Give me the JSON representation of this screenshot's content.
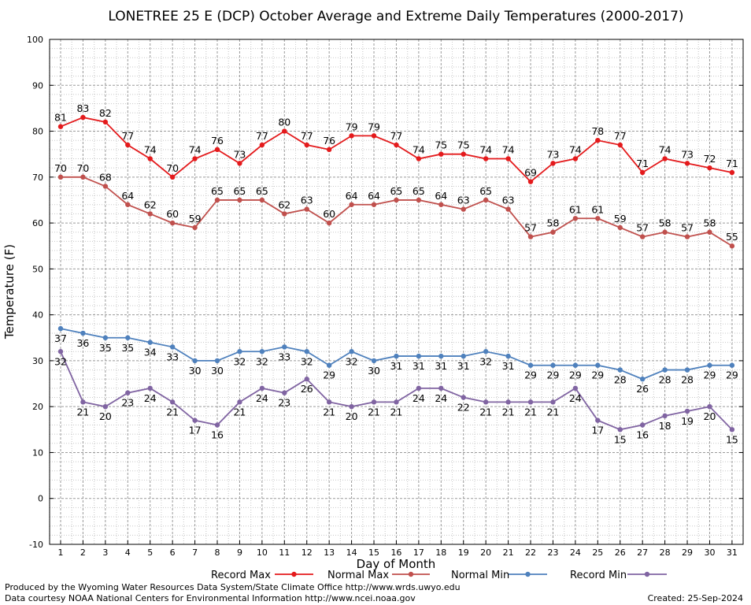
{
  "chart_data": {
    "type": "line",
    "title": "LONETREE 25 E (DCP) October Average and Extreme Daily Temperatures (2000-2017)",
    "xlabel": "Day of Month",
    "ylabel": "Temperature (F)",
    "ylim": [
      -10,
      100
    ],
    "yticks": [
      -10,
      0,
      10,
      20,
      30,
      40,
      50,
      60,
      70,
      80,
      90,
      100
    ],
    "x": [
      1,
      2,
      3,
      4,
      5,
      6,
      7,
      8,
      9,
      10,
      11,
      12,
      13,
      14,
      15,
      16,
      17,
      18,
      19,
      20,
      21,
      22,
      23,
      24,
      25,
      26,
      27,
      28,
      29,
      30,
      31
    ],
    "grid": true,
    "series": [
      {
        "name": "Record Max",
        "color": "#e41a1c",
        "values": [
          81,
          83,
          82,
          77,
          74,
          70,
          74,
          76,
          73,
          77,
          80,
          77,
          76,
          79,
          79,
          77,
          74,
          75,
          75,
          74,
          74,
          69,
          73,
          74,
          78,
          77,
          71,
          74,
          73,
          72,
          71
        ]
      },
      {
        "name": "Normal Max",
        "color": "#c0504d",
        "values": [
          70,
          70,
          68,
          64,
          62,
          60,
          59,
          65,
          65,
          65,
          62,
          63,
          60,
          64,
          64,
          65,
          65,
          64,
          63,
          65,
          63,
          57,
          58,
          61,
          61,
          59,
          57,
          58,
          57,
          58,
          55
        ]
      },
      {
        "name": "Normal Min",
        "color": "#4f81bd",
        "values": [
          37,
          36,
          35,
          35,
          34,
          33,
          30,
          30,
          32,
          32,
          33,
          32,
          29,
          32,
          30,
          31,
          31,
          31,
          31,
          32,
          31,
          29,
          29,
          29,
          29,
          28,
          26,
          28,
          28,
          29,
          29
        ]
      },
      {
        "name": "Record Min",
        "color": "#8064a2",
        "values": [
          32,
          21,
          20,
          23,
          24,
          21,
          17,
          16,
          21,
          24,
          23,
          26,
          21,
          20,
          21,
          21,
          24,
          24,
          22,
          21,
          21,
          21,
          21,
          24,
          17,
          15,
          16,
          18,
          19,
          20,
          15
        ]
      }
    ],
    "legend_position": "bottom"
  },
  "footer": {
    "credit_line1": "Produced by the Wyoming Water Resources Data System/State Climate Office http://www.wrds.uwyo.edu",
    "credit_line2": "Data courtesy NOAA National Centers for Environmental Information http://www.ncei.noaa.gov",
    "created": "Created:  25-Sep-2024"
  }
}
